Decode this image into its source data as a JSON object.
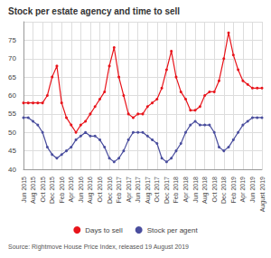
{
  "chart_data": {
    "type": "line",
    "title": "Stock per estate agency and time to sell",
    "source": "Source: Rightmove House Price Index, released 19 August 2019",
    "categories": [
      "Jun 2015",
      null,
      "Aug 2015",
      null,
      "Oct 2015",
      null,
      "Dec 2015",
      null,
      "Feb 2016",
      null,
      "Apr 2016",
      null,
      "Jun 2016",
      null,
      "Aug 2016",
      null,
      "Oct 2016",
      null,
      "Dec 2016",
      null,
      "Feb 2017",
      null,
      "Apr 2017",
      null,
      "Jun 2017",
      null,
      "Aug 2017",
      null,
      "Oct 2017",
      null,
      "Dec 2017",
      null,
      "Feb 2018",
      null,
      "Apr 2018",
      null,
      "Jun 2018",
      null,
      "Aug 2018",
      null,
      "Oct 2018",
      null,
      "Dec 2018",
      null,
      "Feb 2019",
      null,
      "Apr 2019",
      null,
      "Jun 2019",
      null,
      "August 2019"
    ],
    "series": [
      {
        "name": "Days to sell",
        "color": "#e8141b",
        "marker": "circle",
        "values": [
          58,
          58,
          58,
          58,
          58,
          60,
          65,
          68,
          58,
          54,
          52,
          50,
          52,
          53,
          55,
          57,
          59,
          61,
          68,
          73,
          65,
          60,
          55,
          54,
          55,
          55,
          57,
          58,
          59,
          62,
          67,
          72,
          65,
          61,
          59,
          56,
          56,
          57,
          60,
          61,
          61,
          64,
          70,
          77,
          71,
          67,
          64,
          63,
          62,
          62,
          62
        ]
      },
      {
        "name": "Stock per agent",
        "color": "#4a4e9e",
        "marker": "circle",
        "values": [
          54,
          54,
          53,
          52,
          50,
          46,
          44,
          43,
          44,
          45,
          46,
          48,
          49,
          50,
          49,
          49,
          48,
          46,
          43,
          42,
          43,
          45,
          48,
          50,
          50,
          50,
          49,
          48,
          47,
          43,
          42,
          43,
          45,
          47,
          50,
          52,
          53,
          52,
          52,
          52,
          50,
          46,
          45,
          46,
          48,
          50,
          52,
          53,
          54,
          54,
          54
        ]
      }
    ],
    "ylim": [
      40,
      80
    ],
    "yticks": [
      40,
      45,
      50,
      55,
      60,
      65,
      70,
      75
    ],
    "grid": true,
    "legend": "bottom"
  }
}
